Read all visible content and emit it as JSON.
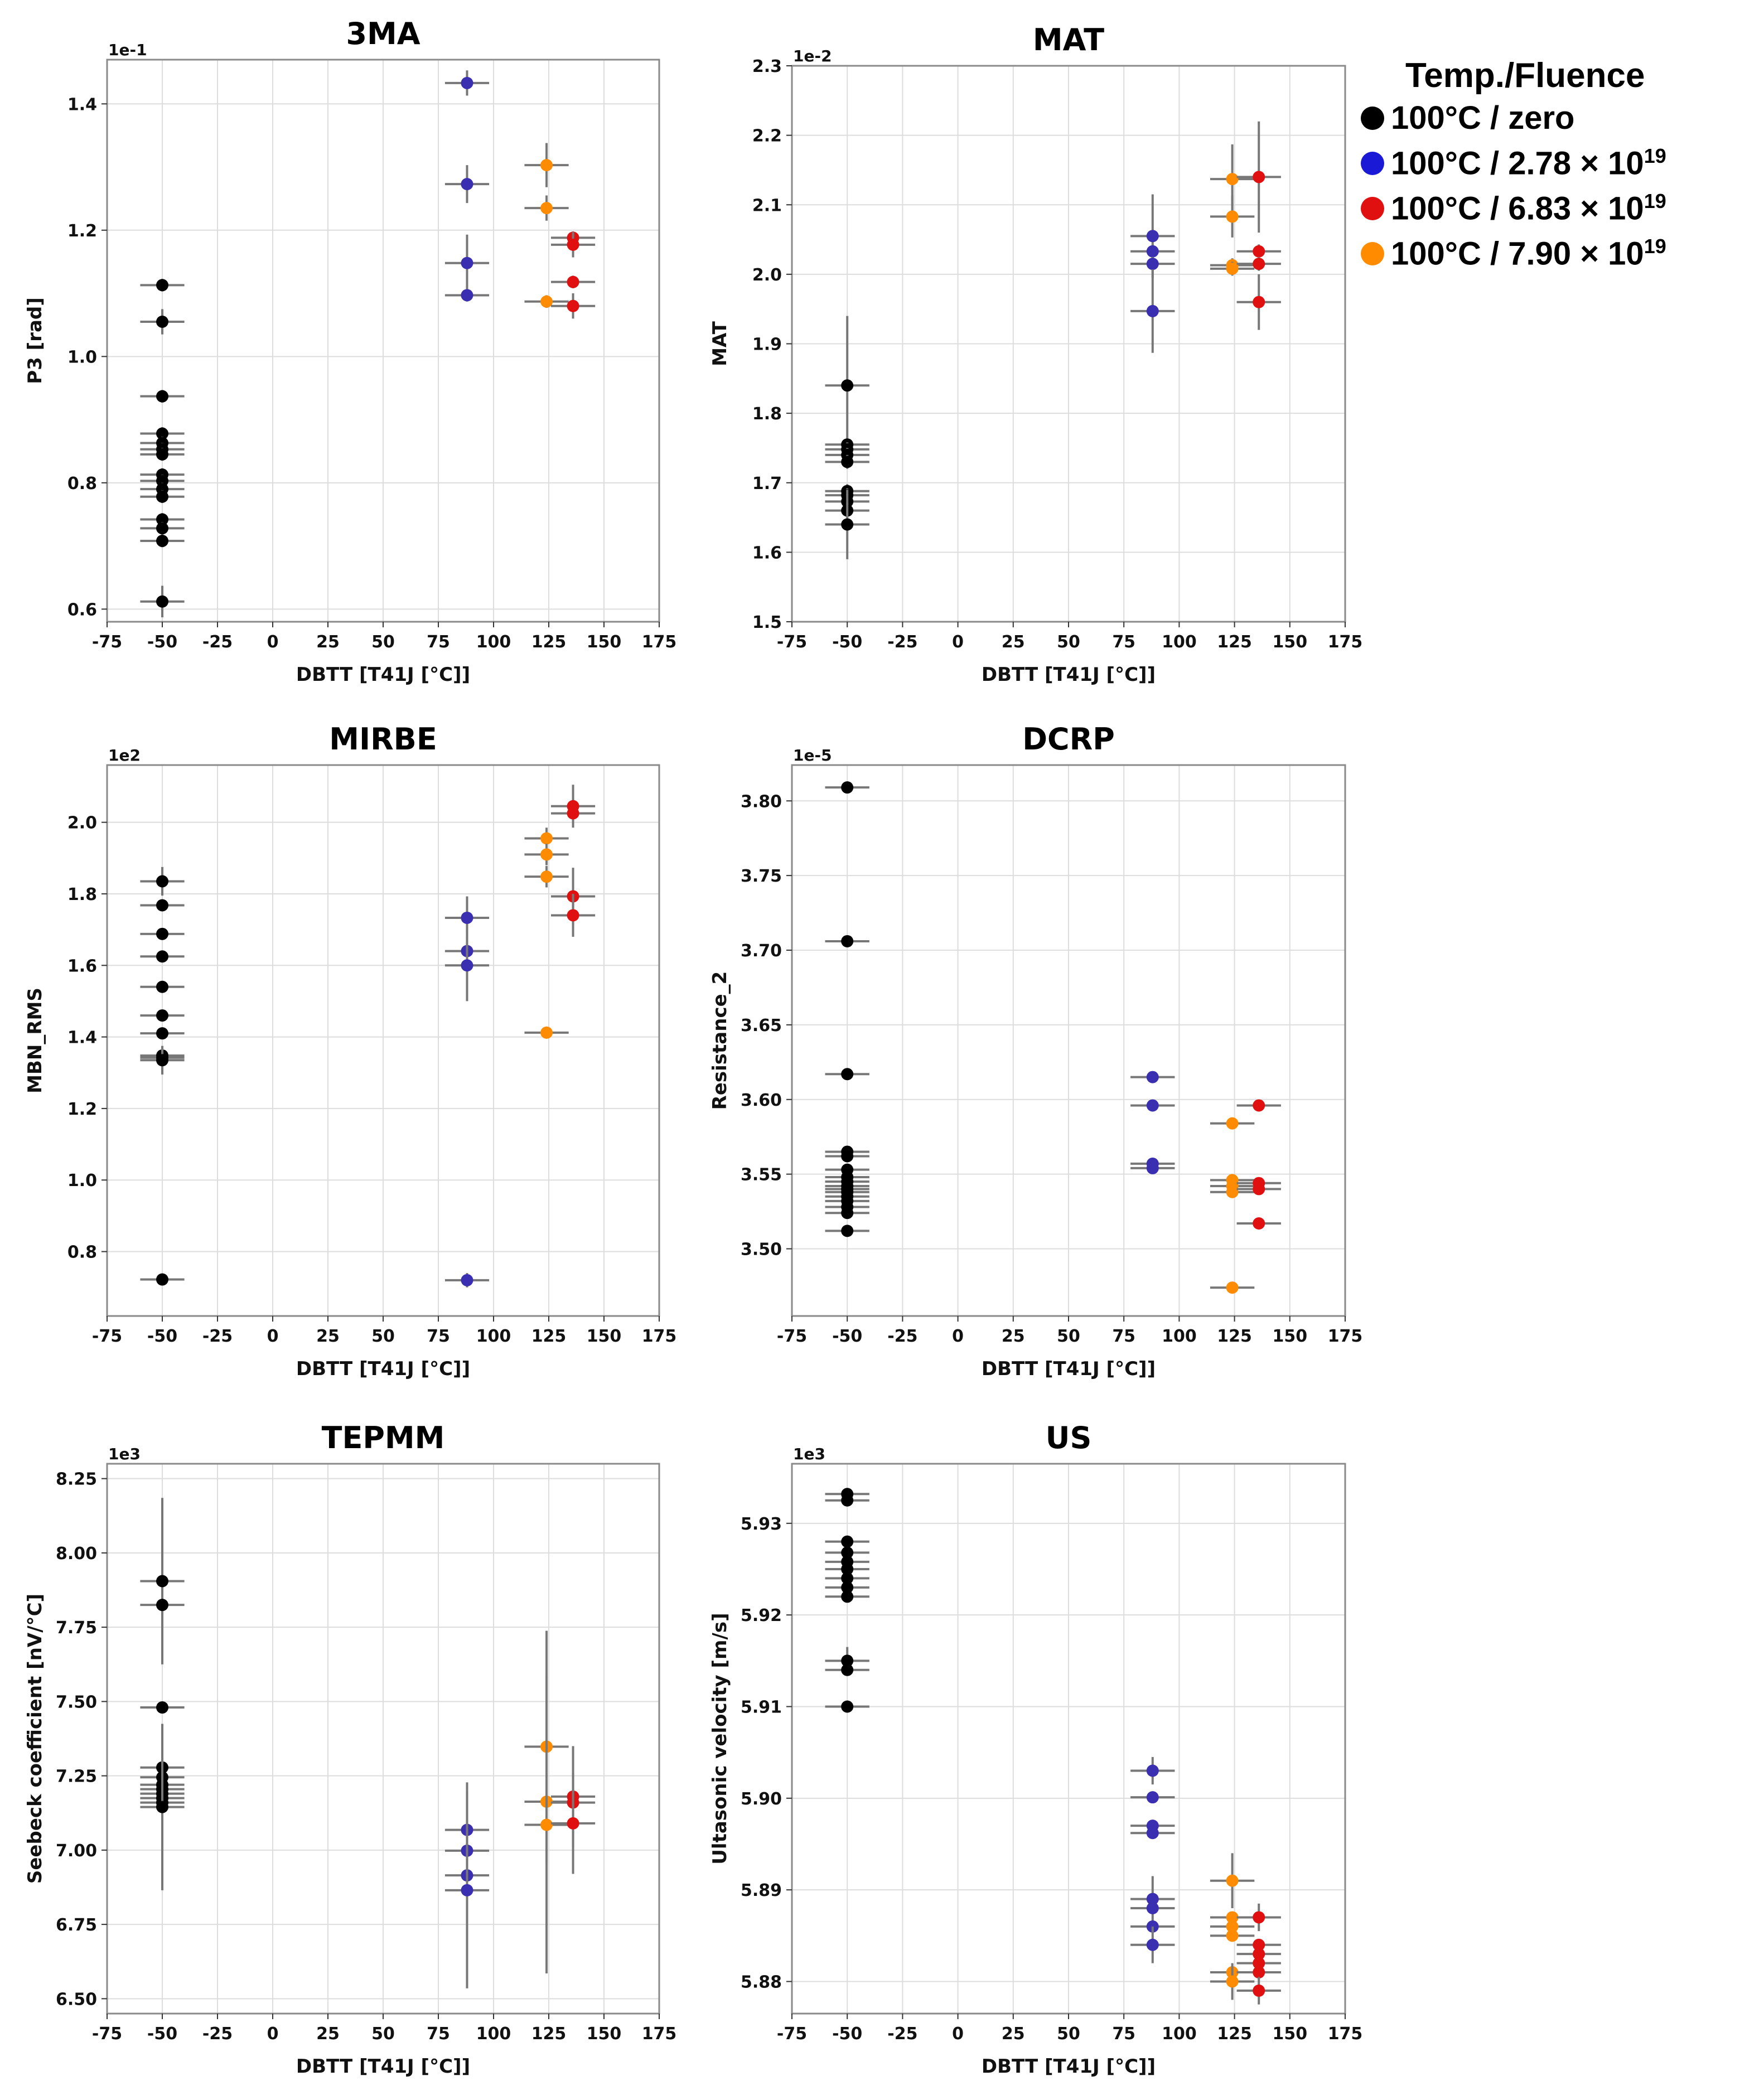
{
  "legend": {
    "title": "Temp./Fluence",
    "items": [
      {
        "label": "100°C / zero",
        "color": "#000000"
      },
      {
        "label": "100°C / 2.78 × 10",
        "sup": "19",
        "color": "#3a2fb0"
      },
      {
        "label": "100°C / 6.83 × 10",
        "sup": "19",
        "color": "#e01010"
      },
      {
        "label": "100°C / 7.90 × 10",
        "sup": "19",
        "color": "#ff8c00"
      }
    ]
  },
  "colors": {
    "zero": "#000000",
    "f278": "#3a2fb0",
    "f683": "#e01010",
    "f790": "#ff8c00",
    "errorbar": "#777777",
    "grid": "#dddddd"
  },
  "chart_data": [
    {
      "type": "scatter",
      "title": "3MA",
      "xlabel": "DBTT [T41J [°C]]",
      "ylabel": "P3 [rad]",
      "scale_label": "1e-1",
      "xlim": [
        -75,
        175
      ],
      "ylim": [
        0.58,
        1.47
      ],
      "xticks": [
        -75,
        -50,
        -25,
        0,
        25,
        50,
        75,
        100,
        125,
        150,
        175
      ],
      "yticks": [
        0.6,
        0.8,
        1.0,
        1.2,
        1.4
      ],
      "ytick_labels": [
        "0.6",
        "0.8",
        "1.0",
        "1.2",
        "1.4"
      ],
      "xerr": 10,
      "series": [
        {
          "name": "100°C / zero",
          "color": "#000000",
          "x": -50,
          "y": [
            1.113,
            1.055,
            0.937,
            0.878,
            0.863,
            0.853,
            0.845,
            0.813,
            0.803,
            0.79,
            0.778,
            0.742,
            0.728,
            0.708,
            0.612
          ],
          "yerr": [
            0.01,
            0.02,
            0.01,
            0.01,
            0.01,
            0.01,
            0.01,
            0.01,
            0.01,
            0.01,
            0.01,
            0.01,
            0.01,
            0.01,
            0.025
          ]
        },
        {
          "name": "100°C / 2.78 × 10^19",
          "color": "#3a2fb0",
          "x": 88,
          "y": [
            1.433,
            1.273,
            1.148,
            1.097
          ],
          "yerr": [
            0.02,
            0.03,
            0.045,
            0.01
          ]
        },
        {
          "name": "100°C / 7.90 × 10^19",
          "color": "#ff8c00",
          "x": 124,
          "y": [
            1.303,
            1.235,
            1.087
          ],
          "yerr": [
            0.035,
            0.02,
            0.01
          ]
        },
        {
          "name": "100°C / 6.83 × 10^19",
          "color": "#e01010",
          "x": 136,
          "y": [
            1.188,
            1.177,
            1.118,
            1.08
          ],
          "yerr": [
            0.01,
            0.02,
            0.01,
            0.02
          ]
        }
      ]
    },
    {
      "type": "scatter",
      "title": "MAT",
      "xlabel": "DBTT [T41J [°C]]",
      "ylabel": "MAT",
      "scale_label": "1e-2",
      "xlim": [
        -75,
        175
      ],
      "ylim": [
        1.5,
        2.3
      ],
      "xticks": [
        -75,
        -50,
        -25,
        0,
        25,
        50,
        75,
        100,
        125,
        150,
        175
      ],
      "yticks": [
        1.5,
        1.6,
        1.7,
        1.8,
        1.9,
        2.0,
        2.1,
        2.2,
        2.3
      ],
      "ytick_labels": [
        "1.5",
        "1.6",
        "1.7",
        "1.8",
        "1.9",
        "2.0",
        "2.1",
        "2.2",
        "2.3"
      ],
      "xerr": 10,
      "series": [
        {
          "name": "100°C / zero",
          "color": "#000000",
          "x": -50,
          "y": [
            1.84,
            1.755,
            1.748,
            1.74,
            1.73,
            1.688,
            1.682,
            1.673,
            1.66,
            1.64
          ],
          "yerr": [
            0.1,
            0.01,
            0.01,
            0.01,
            0.01,
            0.01,
            0.01,
            0.01,
            0.01,
            0.05
          ]
        },
        {
          "name": "100°C / 2.78 × 10^19",
          "color": "#3a2fb0",
          "x": 88,
          "y": [
            2.055,
            2.033,
            2.015,
            1.947
          ],
          "yerr": [
            0.06,
            0.01,
            0.01,
            0.06
          ]
        },
        {
          "name": "100°C / 7.90 × 10^19",
          "color": "#ff8c00",
          "x": 124,
          "y": [
            2.137,
            2.083,
            2.013,
            2.008
          ],
          "yerr": [
            0.05,
            0.03,
            0.01,
            0.01
          ]
        },
        {
          "name": "100°C / 6.83 × 10^19",
          "color": "#e01010",
          "x": 136,
          "y": [
            2.14,
            2.033,
            2.015,
            1.96
          ],
          "yerr": [
            0.08,
            0.01,
            0.01,
            0.04
          ]
        }
      ]
    },
    {
      "type": "scatter",
      "title": "MIRBE",
      "xlabel": "DBTT [T41J [°C]]",
      "ylabel": "MBN_RMS",
      "scale_label": "1e2",
      "xlim": [
        -75,
        175
      ],
      "ylim": [
        0.62,
        2.16
      ],
      "xticks": [
        -75,
        -50,
        -25,
        0,
        25,
        50,
        75,
        100,
        125,
        150,
        175
      ],
      "yticks": [
        0.8,
        1.0,
        1.2,
        1.4,
        1.6,
        1.8,
        2.0
      ],
      "ytick_labels": [
        "0.8",
        "1.0",
        "1.2",
        "1.4",
        "1.6",
        "1.8",
        "2.0"
      ],
      "xerr": 10,
      "series": [
        {
          "name": "100°C / zero",
          "color": "#000000",
          "x": -50,
          "y": [
            1.835,
            1.768,
            1.688,
            1.625,
            1.54,
            1.46,
            1.41,
            1.348,
            1.342,
            1.335,
            0.722
          ],
          "yerr": [
            0.04,
            0.01,
            0.01,
            0.01,
            0.01,
            0.01,
            0.01,
            0.01,
            0.01,
            0.04,
            0.005
          ]
        },
        {
          "name": "100°C / 2.78 × 10^19",
          "color": "#3a2fb0",
          "x": 88,
          "y": [
            1.733,
            1.64,
            1.6,
            0.72
          ],
          "yerr": [
            0.06,
            0.01,
            0.1,
            0.02
          ]
        },
        {
          "name": "100°C / 7.90 × 10^19",
          "color": "#ff8c00",
          "x": 124,
          "y": [
            1.955,
            1.91,
            1.848,
            1.412
          ],
          "yerr": [
            0.03,
            0.03,
            0.03,
            0.01
          ]
        },
        {
          "name": "100°C / 6.83 × 10^19",
          "color": "#e01010",
          "x": 136,
          "y": [
            2.045,
            2.025,
            1.793,
            1.74
          ],
          "yerr": [
            0.06,
            0.01,
            0.08,
            0.06
          ]
        }
      ]
    },
    {
      "type": "scatter",
      "title": "DCRP",
      "xlabel": "DBTT [T41J [°C]]",
      "ylabel": "Resistance_2",
      "scale_label": "1e-5",
      "xlim": [
        -75,
        175
      ],
      "ylim": [
        3.455,
        3.824
      ],
      "xticks": [
        -75,
        -50,
        -25,
        0,
        25,
        50,
        75,
        100,
        125,
        150,
        175
      ],
      "yticks": [
        3.5,
        3.55,
        3.6,
        3.65,
        3.7,
        3.75,
        3.8
      ],
      "ytick_labels": [
        "3.50",
        "3.55",
        "3.60",
        "3.65",
        "3.70",
        "3.75",
        "3.80"
      ],
      "xerr": 10,
      "series": [
        {
          "name": "100°C / zero",
          "color": "#000000",
          "x": -50,
          "y": [
            3.809,
            3.706,
            3.617,
            3.565,
            3.562,
            3.553,
            3.548,
            3.545,
            3.542,
            3.54,
            3.538,
            3.535,
            3.532,
            3.528,
            3.524,
            3.512
          ],
          "yerr": [
            0,
            0,
            0,
            0,
            0,
            0,
            0,
            0,
            0,
            0,
            0,
            0,
            0,
            0,
            0,
            0
          ]
        },
        {
          "name": "100°C / 2.78 × 10^19",
          "color": "#3a2fb0",
          "x": 88,
          "y": [
            3.615,
            3.596,
            3.557,
            3.554
          ],
          "yerr": [
            0,
            0,
            0,
            0
          ]
        },
        {
          "name": "100°C / 7.90 × 10^19",
          "color": "#ff8c00",
          "x": 124,
          "y": [
            3.584,
            3.546,
            3.542,
            3.538,
            3.474
          ],
          "yerr": [
            0,
            0,
            0,
            0,
            0
          ]
        },
        {
          "name": "100°C / 6.83 × 10^19",
          "color": "#e01010",
          "x": 136,
          "y": [
            3.596,
            3.544,
            3.54,
            3.517
          ],
          "yerr": [
            0,
            0,
            0,
            0
          ]
        }
      ]
    },
    {
      "type": "scatter",
      "title": "TEPMM",
      "xlabel": "DBTT [T41J [°C]]",
      "ylabel": "Seebeck coefficient [nV/°C]",
      "scale_label": "1e3",
      "xlim": [
        -75,
        175
      ],
      "ylim": [
        6.45,
        8.3
      ],
      "xticks": [
        -75,
        -50,
        -25,
        0,
        25,
        50,
        75,
        100,
        125,
        150,
        175
      ],
      "yticks": [
        6.5,
        6.75,
        7.0,
        7.25,
        7.5,
        7.75,
        8.0,
        8.25
      ],
      "ytick_labels": [
        "6.50",
        "6.75",
        "7.00",
        "7.25",
        "7.50",
        "7.75",
        "8.00",
        "8.25"
      ],
      "xerr": 10,
      "series": [
        {
          "name": "100°C / zero",
          "color": "#000000",
          "x": -50,
          "y": [
            7.905,
            7.825,
            7.48,
            7.278,
            7.245,
            7.22,
            7.205,
            7.19,
            7.175,
            7.16,
            7.145
          ],
          "yerr": [
            0.28,
            0.01,
            0.01,
            0.01,
            0.01,
            0.01,
            0.01,
            0.01,
            0.01,
            0.01,
            0.28
          ]
        },
        {
          "name": "100°C / 2.78 × 10^19",
          "color": "#3a2fb0",
          "x": 88,
          "y": [
            7.068,
            6.998,
            6.915,
            6.865
          ],
          "yerr": [
            0.16,
            0.01,
            0.01,
            0.33
          ]
        },
        {
          "name": "100°C / 7.90 × 10^19",
          "color": "#ff8c00",
          "x": 124,
          "y": [
            7.348,
            7.163,
            7.085
          ],
          "yerr": [
            0.39,
            0.01,
            0.5
          ]
        },
        {
          "name": "100°C / 6.83 × 10^19",
          "color": "#e01010",
          "x": 136,
          "y": [
            7.18,
            7.16,
            7.09
          ],
          "yerr": [
            0.17,
            0.01,
            0.17
          ]
        }
      ]
    },
    {
      "type": "scatter",
      "title": "US",
      "xlabel": "DBTT [T41J [°C]]",
      "ylabel": "Ultasonic velocity [m/s]",
      "scale_label": "1e3",
      "xlim": [
        -75,
        175
      ],
      "ylim": [
        5.8765,
        5.9365
      ],
      "xticks": [
        -75,
        -50,
        -25,
        0,
        25,
        50,
        75,
        100,
        125,
        150,
        175
      ],
      "yticks": [
        5.88,
        5.89,
        5.9,
        5.91,
        5.92,
        5.93
      ],
      "ytick_labels": [
        "5.88",
        "5.89",
        "5.90",
        "5.91",
        "5.92",
        "5.93"
      ],
      "xerr": 10,
      "series": [
        {
          "name": "100°C / zero",
          "color": "#000000",
          "x": -50,
          "y": [
            5.9332,
            5.9325,
            5.928,
            5.9268,
            5.9258,
            5.925,
            5.924,
            5.923,
            5.922,
            5.915,
            5.914,
            5.91
          ],
          "yerr": [
            0,
            0,
            0,
            0,
            0,
            0,
            0,
            0,
            0,
            0.0015,
            0,
            0
          ]
        },
        {
          "name": "100°C / 2.78 × 10^19",
          "color": "#3a2fb0",
          "x": 88,
          "y": [
            5.903,
            5.9001,
            5.897,
            5.8962,
            5.889,
            5.888,
            5.886,
            5.884
          ],
          "yerr": [
            0.0015,
            0,
            0,
            0,
            0.0025,
            0,
            0,
            0.002
          ]
        },
        {
          "name": "100°C / 7.90 × 10^19",
          "color": "#ff8c00",
          "x": 124,
          "y": [
            5.891,
            5.887,
            5.886,
            5.885,
            5.881,
            5.88
          ],
          "yerr": [
            0.003,
            0,
            0,
            0,
            0,
            0.002
          ]
        },
        {
          "name": "100°C / 6.83 × 10^19",
          "color": "#e01010",
          "x": 136,
          "y": [
            5.887,
            5.884,
            5.883,
            5.882,
            5.881,
            5.879
          ],
          "yerr": [
            0.0015,
            0,
            0,
            0,
            0,
            0.0015
          ]
        }
      ]
    }
  ]
}
